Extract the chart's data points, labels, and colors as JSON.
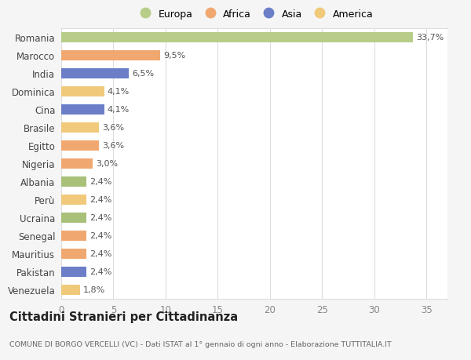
{
  "countries": [
    "Venezuela",
    "Pakistan",
    "Mauritius",
    "Senegal",
    "Ucraina",
    "Perù",
    "Albania",
    "Nigeria",
    "Egitto",
    "Brasile",
    "Cina",
    "Dominica",
    "India",
    "Marocco",
    "Romania"
  ],
  "values": [
    1.8,
    2.4,
    2.4,
    2.4,
    2.4,
    2.4,
    2.4,
    3.0,
    3.6,
    3.6,
    4.1,
    4.1,
    6.5,
    9.5,
    33.7
  ],
  "labels": [
    "1,8%",
    "2,4%",
    "2,4%",
    "2,4%",
    "2,4%",
    "2,4%",
    "2,4%",
    "3,0%",
    "3,6%",
    "3,6%",
    "4,1%",
    "4,1%",
    "6,5%",
    "9,5%",
    "33,7%"
  ],
  "colors": [
    "#f0c97a",
    "#6b7ec7",
    "#f0a870",
    "#f0a870",
    "#a8c078",
    "#f0c97a",
    "#a8c078",
    "#f0a870",
    "#f0a870",
    "#f0c97a",
    "#6b7ec7",
    "#f0c97a",
    "#6b7ec7",
    "#f0a870",
    "#b8cd88"
  ],
  "legend_labels": [
    "Europa",
    "Africa",
    "Asia",
    "America"
  ],
  "legend_colors": [
    "#b8cd88",
    "#f0a870",
    "#6b7ec7",
    "#f0c97a"
  ],
  "title": "Cittadini Stranieri per Cittadinanza",
  "subtitle": "COMUNE DI BORGO VERCELLI (VC) - Dati ISTAT al 1° gennaio di ogni anno - Elaborazione TUTTITALIA.IT",
  "xlim": [
    0,
    37
  ],
  "xticks": [
    0,
    5,
    10,
    15,
    20,
    25,
    30,
    35
  ],
  "bg_color": "#f5f5f5",
  "bar_bg_color": "#ffffff",
  "grid_color": "#dddddd"
}
